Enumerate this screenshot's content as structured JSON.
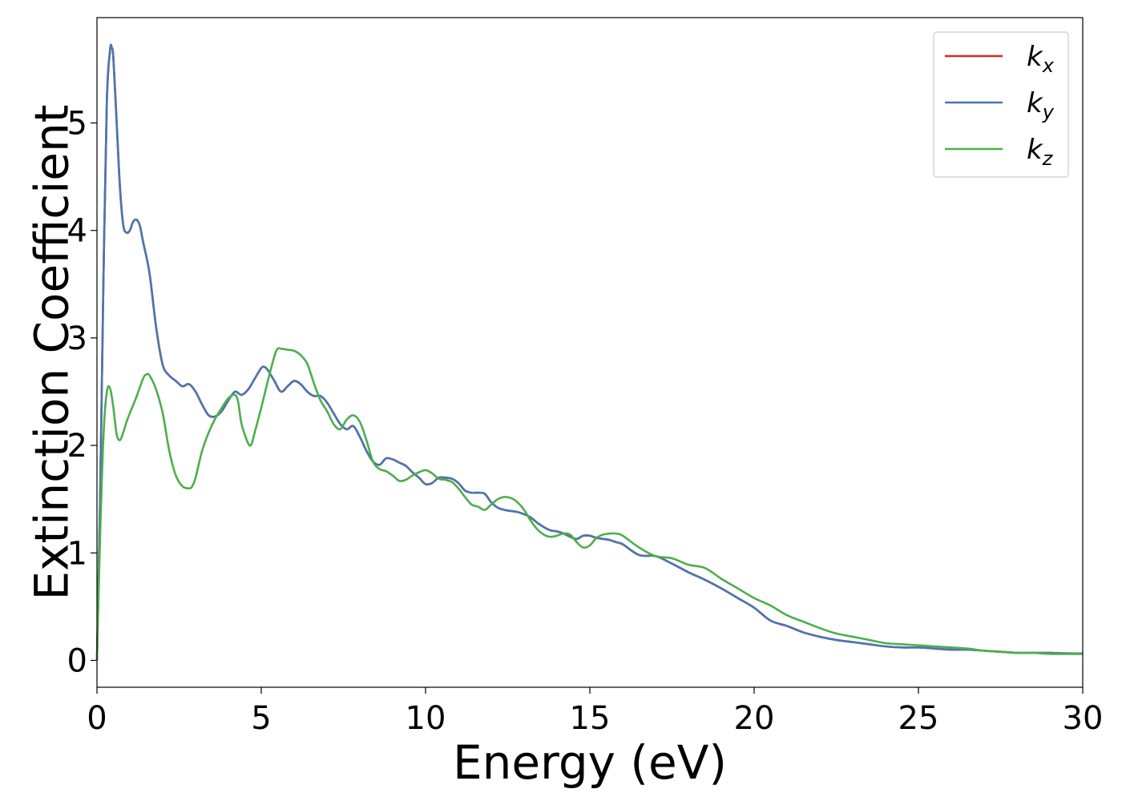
{
  "chart_data": {
    "type": "line",
    "xlabel": "Energy (eV)",
    "ylabel": "Extinction Coefficient",
    "xlim": [
      0,
      30
    ],
    "ylim": [
      -0.25,
      5.98
    ],
    "xticks": [
      0,
      5,
      10,
      15,
      20,
      25,
      30
    ],
    "yticks": [
      0,
      1,
      2,
      3,
      4,
      5
    ],
    "legend_position": "top-right",
    "grid": false,
    "series": [
      {
        "name": "kx",
        "label_base": "k",
        "label_sub": "x",
        "color": "#d62728",
        "x": [
          0,
          0.1,
          0.2,
          0.3,
          0.4,
          0.45,
          0.5,
          0.6,
          0.7,
          0.8,
          0.9,
          1.0,
          1.1,
          1.2,
          1.3,
          1.4,
          1.6,
          1.8,
          2.0,
          2.2,
          2.4,
          2.6,
          2.8,
          3.0,
          3.2,
          3.4,
          3.6,
          3.8,
          4.0,
          4.2,
          4.4,
          4.6,
          4.8,
          5.0,
          5.1,
          5.2,
          5.4,
          5.6,
          5.8,
          6.0,
          6.2,
          6.4,
          6.6,
          6.8,
          7.0,
          7.2,
          7.4,
          7.6,
          7.8,
          8.0,
          8.2,
          8.4,
          8.6,
          8.8,
          9.0,
          9.2,
          9.4,
          9.6,
          9.8,
          10.0,
          10.2,
          10.4,
          10.6,
          10.8,
          11.0,
          11.2,
          11.4,
          11.6,
          11.8,
          12.0,
          12.2,
          12.4,
          12.6,
          12.8,
          13.0,
          13.2,
          13.4,
          13.6,
          13.8,
          14.0,
          14.2,
          14.4,
          14.6,
          14.8,
          15.0,
          15.2,
          15.4,
          15.6,
          15.8,
          16.0,
          16.5,
          17.0,
          17.5,
          18.0,
          18.5,
          19.0,
          19.5,
          20.0,
          20.5,
          21.0,
          21.5,
          22.0,
          22.5,
          23.0,
          23.5,
          24.0,
          24.5,
          25.0,
          25.5,
          26.0,
          26.5,
          27.0,
          27.5,
          28.0,
          28.5,
          29.0,
          29.5,
          30.0
        ],
        "y": [
          0.0,
          1.6,
          3.6,
          5.2,
          5.68,
          5.7,
          5.6,
          5.0,
          4.4,
          4.05,
          3.98,
          4.0,
          4.08,
          4.1,
          4.05,
          3.9,
          3.6,
          3.1,
          2.75,
          2.65,
          2.6,
          2.55,
          2.57,
          2.5,
          2.38,
          2.28,
          2.27,
          2.32,
          2.42,
          2.5,
          2.47,
          2.52,
          2.62,
          2.72,
          2.73,
          2.7,
          2.6,
          2.5,
          2.55,
          2.6,
          2.57,
          2.5,
          2.46,
          2.46,
          2.4,
          2.3,
          2.2,
          2.15,
          2.18,
          2.08,
          1.95,
          1.85,
          1.82,
          1.88,
          1.87,
          1.84,
          1.81,
          1.75,
          1.7,
          1.64,
          1.65,
          1.7,
          1.7,
          1.69,
          1.65,
          1.58,
          1.56,
          1.56,
          1.55,
          1.47,
          1.42,
          1.4,
          1.39,
          1.38,
          1.36,
          1.33,
          1.28,
          1.24,
          1.21,
          1.2,
          1.18,
          1.15,
          1.13,
          1.16,
          1.16,
          1.14,
          1.13,
          1.12,
          1.1,
          1.08,
          0.98,
          0.97,
          0.9,
          0.82,
          0.75,
          0.67,
          0.58,
          0.49,
          0.37,
          0.32,
          0.26,
          0.22,
          0.19,
          0.17,
          0.15,
          0.13,
          0.12,
          0.12,
          0.11,
          0.1,
          0.1,
          0.09,
          0.08,
          0.07,
          0.07,
          0.07,
          0.065,
          0.065
        ]
      },
      {
        "name": "ky",
        "label_base": "k",
        "label_sub": "y",
        "color": "#4a76b0",
        "x": [
          0,
          0.1,
          0.2,
          0.3,
          0.4,
          0.45,
          0.5,
          0.6,
          0.7,
          0.8,
          0.9,
          1.0,
          1.1,
          1.2,
          1.3,
          1.4,
          1.6,
          1.8,
          2.0,
          2.2,
          2.4,
          2.6,
          2.8,
          3.0,
          3.2,
          3.4,
          3.6,
          3.8,
          4.0,
          4.2,
          4.4,
          4.6,
          4.8,
          5.0,
          5.1,
          5.2,
          5.4,
          5.6,
          5.8,
          6.0,
          6.2,
          6.4,
          6.6,
          6.8,
          7.0,
          7.2,
          7.4,
          7.6,
          7.8,
          8.0,
          8.2,
          8.4,
          8.6,
          8.8,
          9.0,
          9.2,
          9.4,
          9.6,
          9.8,
          10.0,
          10.2,
          10.4,
          10.6,
          10.8,
          11.0,
          11.2,
          11.4,
          11.6,
          11.8,
          12.0,
          12.2,
          12.4,
          12.6,
          12.8,
          13.0,
          13.2,
          13.4,
          13.6,
          13.8,
          14.0,
          14.2,
          14.4,
          14.6,
          14.8,
          15.0,
          15.2,
          15.4,
          15.6,
          15.8,
          16.0,
          16.5,
          17.0,
          17.5,
          18.0,
          18.5,
          19.0,
          19.5,
          20.0,
          20.5,
          21.0,
          21.5,
          22.0,
          22.5,
          23.0,
          23.5,
          24.0,
          24.5,
          25.0,
          25.5,
          26.0,
          26.5,
          27.0,
          27.5,
          28.0,
          28.5,
          29.0,
          29.5,
          30.0
        ],
        "y": [
          0.0,
          1.6,
          3.6,
          5.2,
          5.68,
          5.7,
          5.6,
          5.0,
          4.4,
          4.05,
          3.98,
          4.0,
          4.08,
          4.1,
          4.05,
          3.9,
          3.6,
          3.1,
          2.75,
          2.65,
          2.6,
          2.55,
          2.57,
          2.5,
          2.38,
          2.28,
          2.27,
          2.32,
          2.42,
          2.5,
          2.47,
          2.52,
          2.62,
          2.72,
          2.73,
          2.7,
          2.6,
          2.5,
          2.55,
          2.6,
          2.57,
          2.5,
          2.46,
          2.46,
          2.4,
          2.3,
          2.2,
          2.15,
          2.18,
          2.08,
          1.95,
          1.85,
          1.82,
          1.88,
          1.87,
          1.84,
          1.81,
          1.75,
          1.7,
          1.64,
          1.65,
          1.7,
          1.7,
          1.69,
          1.65,
          1.58,
          1.56,
          1.56,
          1.55,
          1.47,
          1.42,
          1.4,
          1.39,
          1.38,
          1.36,
          1.33,
          1.28,
          1.24,
          1.21,
          1.2,
          1.18,
          1.15,
          1.13,
          1.16,
          1.16,
          1.14,
          1.13,
          1.12,
          1.1,
          1.08,
          0.98,
          0.97,
          0.9,
          0.82,
          0.75,
          0.67,
          0.58,
          0.49,
          0.37,
          0.32,
          0.26,
          0.22,
          0.19,
          0.17,
          0.15,
          0.13,
          0.12,
          0.12,
          0.11,
          0.1,
          0.1,
          0.09,
          0.08,
          0.07,
          0.07,
          0.07,
          0.065,
          0.065
        ]
      },
      {
        "name": "kz",
        "label_base": "k",
        "label_sub": "z",
        "color": "#4daf4a",
        "x": [
          0,
          0.1,
          0.2,
          0.3,
          0.4,
          0.5,
          0.6,
          0.7,
          0.8,
          0.9,
          1.0,
          1.2,
          1.4,
          1.5,
          1.6,
          1.8,
          2.0,
          2.2,
          2.4,
          2.6,
          2.8,
          2.9,
          3.0,
          3.2,
          3.4,
          3.6,
          3.8,
          4.0,
          4.2,
          4.3,
          4.4,
          4.6,
          4.7,
          4.8,
          5.0,
          5.2,
          5.4,
          5.5,
          5.6,
          5.8,
          6.0,
          6.2,
          6.4,
          6.6,
          6.8,
          7.0,
          7.2,
          7.4,
          7.6,
          7.8,
          8.0,
          8.2,
          8.4,
          8.6,
          8.8,
          9.0,
          9.2,
          9.4,
          9.6,
          9.8,
          10.0,
          10.2,
          10.4,
          10.6,
          10.8,
          11.0,
          11.2,
          11.4,
          11.6,
          11.8,
          12.0,
          12.2,
          12.4,
          12.6,
          12.8,
          13.0,
          13.2,
          13.4,
          13.6,
          13.8,
          14.0,
          14.2,
          14.4,
          14.6,
          14.8,
          15.0,
          15.2,
          15.4,
          15.6,
          15.8,
          16.0,
          16.5,
          17.0,
          17.5,
          18.0,
          18.5,
          19.0,
          19.5,
          20.0,
          20.5,
          21.0,
          21.5,
          22.0,
          22.5,
          23.0,
          23.5,
          24.0,
          24.5,
          25.0,
          25.5,
          26.0,
          26.5,
          27.0,
          27.5,
          28.0,
          28.5,
          29.0,
          29.5,
          30.0
        ],
        "y": [
          0.0,
          1.2,
          2.1,
          2.5,
          2.53,
          2.35,
          2.1,
          2.05,
          2.12,
          2.22,
          2.3,
          2.45,
          2.62,
          2.66,
          2.65,
          2.52,
          2.3,
          1.95,
          1.72,
          1.62,
          1.6,
          1.62,
          1.7,
          1.95,
          2.12,
          2.25,
          2.35,
          2.44,
          2.47,
          2.4,
          2.2,
          2.02,
          2.01,
          2.12,
          2.35,
          2.6,
          2.83,
          2.9,
          2.9,
          2.89,
          2.88,
          2.84,
          2.76,
          2.58,
          2.42,
          2.32,
          2.2,
          2.15,
          2.24,
          2.28,
          2.22,
          2.05,
          1.85,
          1.78,
          1.76,
          1.72,
          1.67,
          1.68,
          1.72,
          1.75,
          1.77,
          1.74,
          1.69,
          1.68,
          1.66,
          1.6,
          1.52,
          1.45,
          1.43,
          1.4,
          1.45,
          1.5,
          1.52,
          1.51,
          1.47,
          1.4,
          1.3,
          1.22,
          1.17,
          1.15,
          1.16,
          1.18,
          1.17,
          1.1,
          1.05,
          1.07,
          1.14,
          1.17,
          1.18,
          1.18,
          1.16,
          1.05,
          0.97,
          0.95,
          0.89,
          0.86,
          0.76,
          0.67,
          0.58,
          0.51,
          0.42,
          0.36,
          0.3,
          0.25,
          0.22,
          0.19,
          0.16,
          0.15,
          0.14,
          0.13,
          0.12,
          0.11,
          0.09,
          0.08,
          0.07,
          0.07,
          0.06,
          0.06,
          0.06
        ]
      }
    ]
  }
}
